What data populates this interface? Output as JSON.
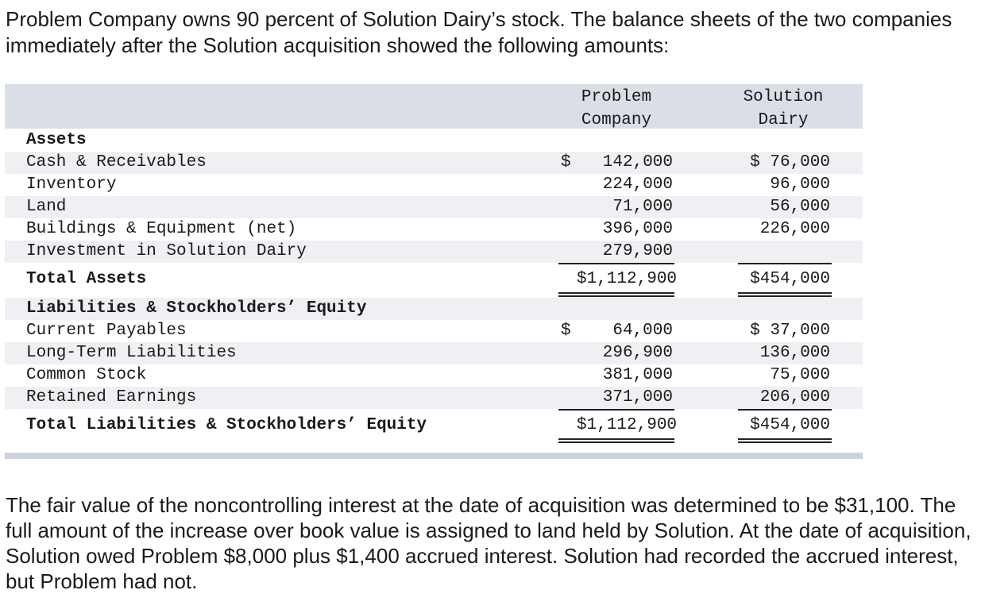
{
  "intro_text": "Problem Company owns 90 percent of Solution Dairy’s stock. The balance sheets of the two companies immediately after the Solution acquisition showed the following amounts:",
  "table": {
    "col_problem_line1": "Problem",
    "col_problem_line2": "Company",
    "col_solution_line1": "Solution",
    "col_solution_line2": "Dairy",
    "currency": "$",
    "assets_heading": "Assets",
    "asset_rows": [
      {
        "label": "Cash & Receivables",
        "problem": "142,000",
        "solution": "$ 76,000"
      },
      {
        "label": "Inventory",
        "problem": "224,000",
        "solution": "96,000"
      },
      {
        "label": "Land",
        "problem": "71,000",
        "solution": "56,000"
      },
      {
        "label": "Buildings & Equipment (net)",
        "problem": "396,000",
        "solution": "226,000"
      },
      {
        "label": "Investment in Solution Dairy",
        "problem": "279,900",
        "solution": ""
      }
    ],
    "total_assets": {
      "label": "Total Assets",
      "problem": "$1,112,900",
      "solution": "$454,000"
    },
    "liabilities_heading": "Liabilities & Stockholders’ Equity",
    "liability_rows": [
      {
        "label": "Current Payables",
        "problem": "64,000",
        "solution": "$ 37,000"
      },
      {
        "label": "Long-Term Liabilities",
        "problem": "296,900",
        "solution": "136,000"
      },
      {
        "label": "Common Stock",
        "problem": "381,000",
        "solution": "75,000"
      },
      {
        "label": "Retained Earnings",
        "problem": "371,000",
        "solution": "206,000"
      }
    ],
    "total_liabilities": {
      "label": "Total Liabilities & Stockholders’ Equity",
      "problem": "$1,112,900",
      "solution": "$454,000"
    }
  },
  "outro_text": "The fair value of the noncontrolling interest at the date of acquisition was determined to be $31,100. The full amount of the increase over book value is assigned to land held by Solution. At the date of acquisition, Solution owed Problem $8,000 plus $1,400 accrued interest. Solution had recorded the accrued interest, but Problem had not."
}
